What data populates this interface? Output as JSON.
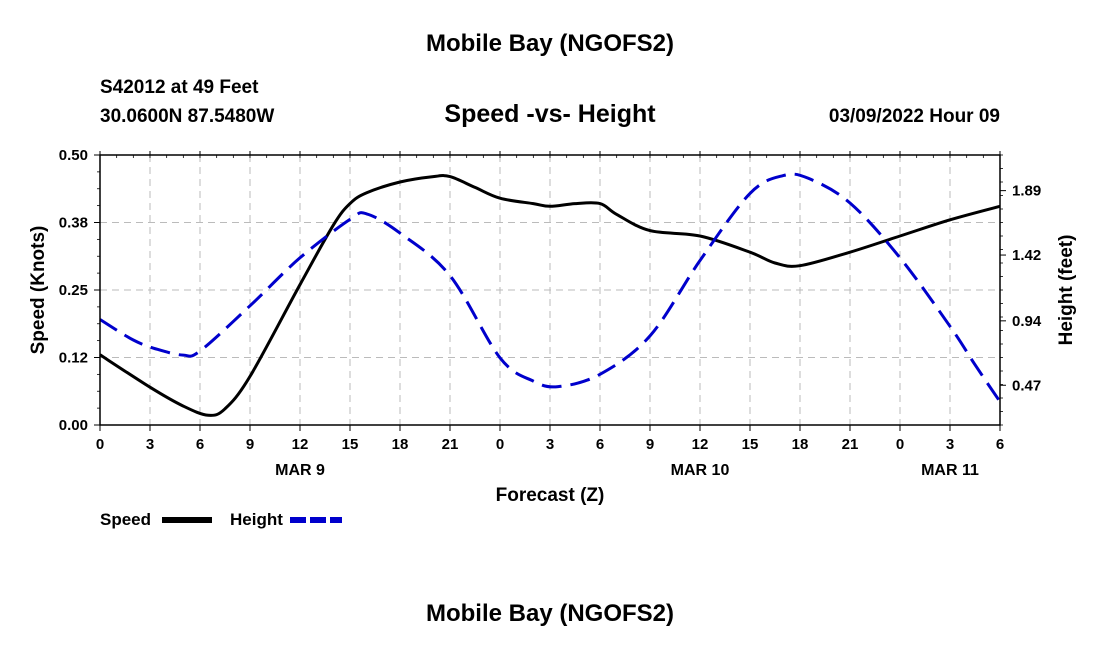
{
  "header": {
    "title": "Mobile Bay (NGOFS2)",
    "station": "S42012 at 49 Feet",
    "coords": "30.0600N  87.5480W",
    "chart_title": "Speed -vs- Height",
    "datetime": "03/09/2022 Hour 09"
  },
  "footer": {
    "title": "Mobile Bay (NGOFS2)"
  },
  "legend": {
    "speed_label": "Speed",
    "height_label": "Height"
  },
  "colors": {
    "speed": "#000000",
    "height": "#0000cc",
    "grid": "#bbbbbb"
  },
  "chart_data": {
    "type": "line",
    "title": "Speed -vs- Height",
    "xlabel": "Forecast (Z)",
    "ylabel": "Speed (Knots)",
    "y2label": "Height (feet)",
    "x_hour_range": [
      0,
      54
    ],
    "x_ticks": [
      "0",
      "3",
      "6",
      "9",
      "12",
      "15",
      "18",
      "21",
      "0",
      "3",
      "6",
      "9",
      "12",
      "15",
      "18",
      "21",
      "0",
      "3",
      "6"
    ],
    "day_labels": [
      {
        "label": "MAR 9",
        "hour": 12
      },
      {
        "label": "MAR 10",
        "hour": 36
      },
      {
        "label": "MAR 11",
        "hour": 51
      }
    ],
    "ylim": [
      0,
      0.5
    ],
    "y_ticks": [
      "0.00",
      "0.12",
      "0.25",
      "0.38",
      "0.50"
    ],
    "y2lim": [
      0.18,
      2.15
    ],
    "y2_ticks": [
      "0.47",
      "0.94",
      "1.42",
      "1.89"
    ],
    "grid": true,
    "legend_position": "bottom-left",
    "series": [
      {
        "name": "Speed",
        "axis": "left",
        "style": "solid",
        "x": [
          0,
          3,
          5,
          6.5,
          7.5,
          9,
          12,
          14,
          15,
          16,
          18,
          20,
          21,
          22.5,
          24,
          26,
          27,
          28.5,
          30,
          31,
          33,
          36,
          39,
          40.5,
          42,
          45,
          48,
          51,
          54
        ],
        "y": [
          0.13,
          0.07,
          0.035,
          0.018,
          0.03,
          0.09,
          0.26,
          0.37,
          0.41,
          0.43,
          0.45,
          0.46,
          0.46,
          0.44,
          0.42,
          0.41,
          0.405,
          0.41,
          0.41,
          0.39,
          0.36,
          0.35,
          0.32,
          0.3,
          0.295,
          0.32,
          0.35,
          0.38,
          0.405
        ]
      },
      {
        "name": "Height",
        "axis": "right",
        "style": "dashed",
        "x": [
          0,
          2,
          3.5,
          5,
          6,
          9,
          12,
          15,
          16,
          18,
          21,
          24,
          26,
          27.5,
          30,
          33,
          36,
          39,
          41,
          42.5,
          45,
          48,
          51,
          52.5,
          54
        ],
        "y": [
          0.95,
          0.8,
          0.73,
          0.69,
          0.72,
          1.05,
          1.4,
          1.68,
          1.72,
          1.58,
          1.27,
          0.67,
          0.5,
          0.46,
          0.55,
          0.83,
          1.38,
          1.87,
          2.0,
          1.98,
          1.8,
          1.4,
          0.9,
          0.62,
          0.35
        ]
      }
    ]
  }
}
